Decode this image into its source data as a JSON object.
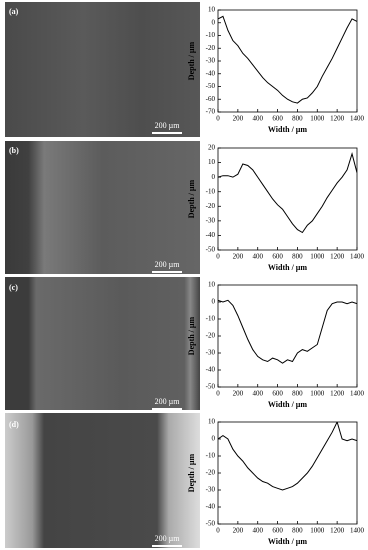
{
  "images": [
    {
      "label": "(a)",
      "scale_bar": "200 µm"
    },
    {
      "label": "(b)",
      "scale_bar": "200 µm"
    },
    {
      "label": "(c)",
      "scale_bar": "200 µm"
    },
    {
      "label": "(d)",
      "scale_bar": "200 µm"
    }
  ],
  "chart_data": [
    {
      "type": "line",
      "xlabel": "Width / µm",
      "ylabel": "Depth / µm",
      "color": "#000000",
      "x": [
        0,
        50,
        100,
        150,
        200,
        250,
        300,
        350,
        400,
        450,
        500,
        550,
        600,
        650,
        700,
        750,
        800,
        850,
        900,
        950,
        1000,
        1050,
        1100,
        1150,
        1200,
        1250,
        1300,
        1350,
        1400
      ],
      "values": [
        3,
        5,
        -6,
        -14,
        -18,
        -24,
        -28,
        -33,
        -38,
        -43,
        -47,
        -50,
        -53,
        -57,
        -60,
        -62,
        -63,
        -60,
        -59,
        -55,
        -50,
        -42,
        -35,
        -28,
        -20,
        -12,
        -4,
        3,
        1
      ],
      "xlim": [
        0,
        1400
      ],
      "xticks": [
        0,
        200,
        400,
        600,
        800,
        1000,
        1200,
        1400
      ],
      "ylim": [
        -70,
        10
      ],
      "yticks": [
        -70,
        -60,
        -50,
        -40,
        -30,
        -20,
        -10,
        0,
        10
      ]
    },
    {
      "type": "line",
      "xlabel": "Width / µm",
      "ylabel": "Depth / µm",
      "color": "#000000",
      "x": [
        0,
        50,
        100,
        150,
        200,
        250,
        300,
        350,
        400,
        450,
        500,
        550,
        600,
        650,
        700,
        750,
        800,
        850,
        900,
        950,
        1000,
        1050,
        1100,
        1150,
        1200,
        1250,
        1300,
        1350,
        1400
      ],
      "values": [
        0,
        1,
        1,
        0,
        2,
        9,
        8,
        5,
        0,
        -5,
        -10,
        -15,
        -19,
        -22,
        -27,
        -32,
        -36,
        -38,
        -33,
        -30,
        -25,
        -20,
        -14,
        -9,
        -4,
        0,
        5,
        16,
        3
      ],
      "xlim": [
        0,
        1400
      ],
      "xticks": [
        0,
        200,
        400,
        600,
        800,
        1000,
        1200,
        1400
      ],
      "ylim": [
        -50,
        20
      ],
      "yticks": [
        -50,
        -40,
        -30,
        -20,
        -10,
        0,
        10,
        20
      ]
    },
    {
      "type": "line",
      "xlabel": "Width / µm",
      "ylabel": "Depth / µm",
      "color": "#000000",
      "x": [
        0,
        50,
        100,
        150,
        200,
        250,
        300,
        350,
        400,
        450,
        500,
        550,
        600,
        650,
        700,
        750,
        800,
        850,
        900,
        950,
        1000,
        1050,
        1100,
        1150,
        1200,
        1250,
        1300,
        1350,
        1400
      ],
      "values": [
        1,
        0,
        1,
        -2,
        -8,
        -15,
        -22,
        -28,
        -32,
        -34,
        -35,
        -33,
        -34,
        -36,
        -34,
        -35,
        -30,
        -28,
        -29,
        -27,
        -25,
        -15,
        -5,
        -1,
        0,
        0,
        -1,
        0,
        -1
      ],
      "xlim": [
        0,
        1400
      ],
      "xticks": [
        0,
        200,
        400,
        600,
        800,
        1000,
        1200,
        1400
      ],
      "ylim": [
        -50,
        10
      ],
      "yticks": [
        -50,
        -40,
        -30,
        -20,
        -10,
        0,
        10
      ]
    },
    {
      "type": "line",
      "xlabel": "Width / µm",
      "ylabel": "Depth / µm",
      "color": "#000000",
      "x": [
        0,
        50,
        100,
        150,
        200,
        250,
        300,
        350,
        400,
        450,
        500,
        550,
        600,
        650,
        700,
        750,
        800,
        850,
        900,
        950,
        1000,
        1050,
        1100,
        1150,
        1200,
        1250,
        1300,
        1350,
        1400
      ],
      "values": [
        0,
        2,
        0,
        -6,
        -10,
        -13,
        -17,
        -20,
        -23,
        -25,
        -26,
        -28,
        -29,
        -30,
        -29,
        -28,
        -26,
        -23,
        -20,
        -16,
        -11,
        -6,
        -1,
        4,
        10,
        0,
        -1,
        0,
        -1
      ],
      "xlim": [
        0,
        1400
      ],
      "xticks": [
        0,
        200,
        400,
        600,
        800,
        1000,
        1200,
        1400
      ],
      "ylim": [
        -50,
        10
      ],
      "yticks": [
        -50,
        -40,
        -30,
        -20,
        -10,
        0,
        10
      ]
    }
  ]
}
